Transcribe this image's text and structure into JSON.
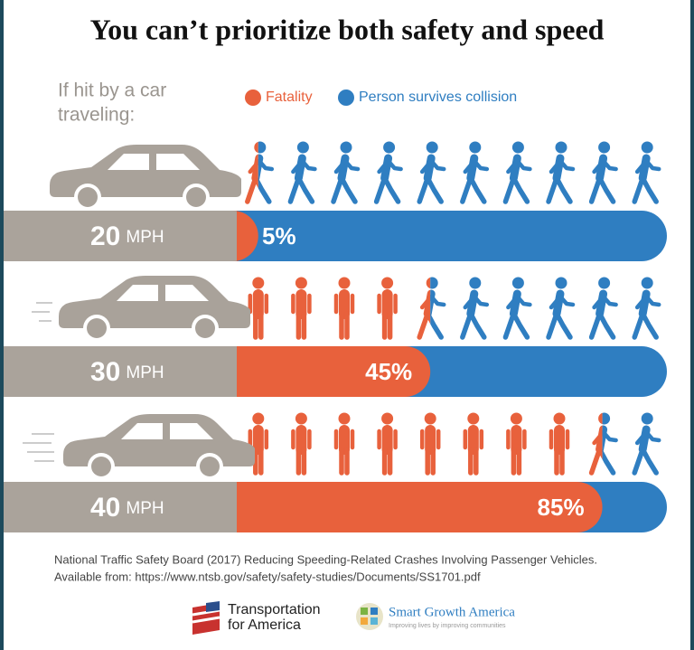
{
  "chart_data": {
    "type": "pictograph",
    "title": "You can’t prioritize both safety and speed",
    "subtitle": [
      "If hit by a car",
      "traveling:"
    ],
    "legend": [
      {
        "name": "Fatality",
        "color": "#e8613c"
      },
      {
        "name": "Person survives collision",
        "color": "#2f7ec1"
      }
    ],
    "categories": [
      "20",
      "30",
      "40"
    ],
    "unit": "MPH",
    "values": [
      5,
      45,
      85
    ],
    "value_labels": [
      "5%",
      "45%",
      "85%"
    ],
    "xlim": [
      0,
      100
    ],
    "icons_per_row": 10,
    "source": [
      "National Traffic Safety Board (2017) Reducing Speeding-Related Crashes Involving Passenger Vehicles.",
      "Available from: https://www.ntsb.gov/safety/safety-studies/Documents/SS1701.pdf"
    ],
    "logos": [
      {
        "name": [
          "Transportation",
          "for America"
        ]
      },
      {
        "name": [
          "Smart Growth America",
          "Improving lives by improving communities"
        ]
      }
    ]
  }
}
